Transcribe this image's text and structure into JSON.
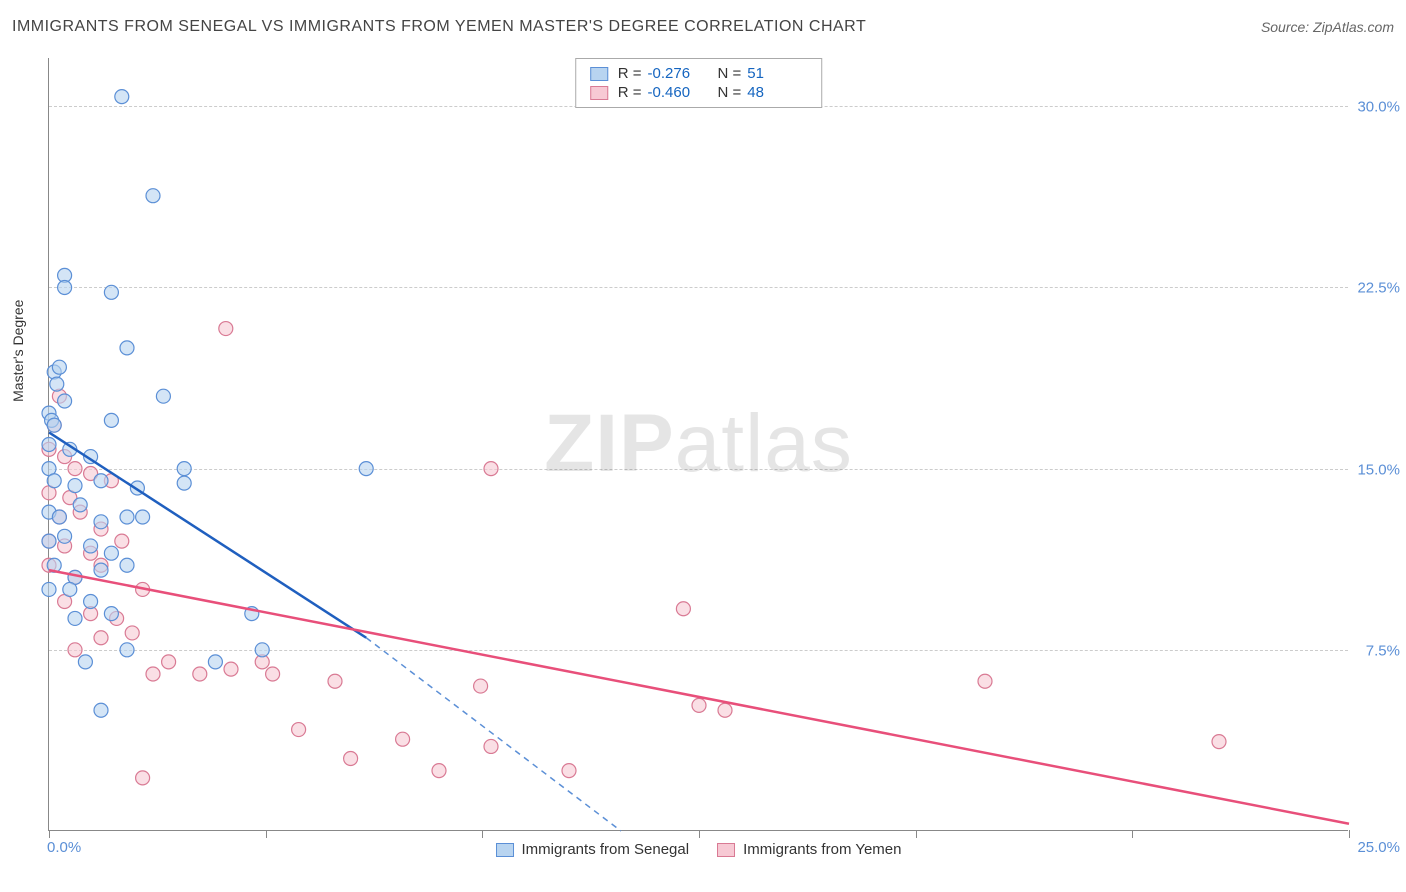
{
  "header": {
    "title": "IMMIGRANTS FROM SENEGAL VS IMMIGRANTS FROM YEMEN MASTER'S DEGREE CORRELATION CHART",
    "source": "Source: ZipAtlas.com"
  },
  "watermark": {
    "zip": "ZIP",
    "atlas": "atlas"
  },
  "chart": {
    "type": "scatter",
    "y_axis_label": "Master's Degree",
    "xlim": [
      0,
      25
    ],
    "ylim": [
      0,
      32
    ],
    "x_origin_label": "0.0%",
    "x_end_label": "25.0%",
    "y_ticks": [
      {
        "v": 7.5,
        "label": "7.5%"
      },
      {
        "v": 15.0,
        "label": "15.0%"
      },
      {
        "v": 22.5,
        "label": "22.5%"
      },
      {
        "v": 30.0,
        "label": "30.0%"
      }
    ],
    "x_tick_positions": [
      0,
      4.17,
      8.33,
      12.5,
      16.67,
      20.83,
      25
    ],
    "colors": {
      "series_a_fill": "#b8d4f0",
      "series_a_stroke": "#5b8fd6",
      "series_a_line": "#1f5fbf",
      "series_b_fill": "#f7c9d4",
      "series_b_stroke": "#d97a94",
      "series_b_line": "#e84f7a",
      "grid": "#cccccc",
      "axis": "#888888",
      "text": "#333333",
      "tick_label": "#5b8fd6"
    },
    "marker_radius": 7,
    "marker_opacity": 0.6,
    "series_a": {
      "name": "Immigrants from Senegal",
      "R": "-0.276",
      "N": "51",
      "trend": {
        "x1": 0,
        "y1": 16.5,
        "x2": 6.1,
        "y2": 8.0,
        "x2_ext": 11.0,
        "y2_ext": 0.0
      },
      "points": [
        [
          1.4,
          30.4
        ],
        [
          2.0,
          26.3
        ],
        [
          0.3,
          23.0
        ],
        [
          0.3,
          22.5
        ],
        [
          1.2,
          22.3
        ],
        [
          0.1,
          19.0
        ],
        [
          0.15,
          18.5
        ],
        [
          0.2,
          19.2
        ],
        [
          1.5,
          20.0
        ],
        [
          0.0,
          17.3
        ],
        [
          0.05,
          17.0
        ],
        [
          0.1,
          16.8
        ],
        [
          0.3,
          17.8
        ],
        [
          2.2,
          18.0
        ],
        [
          0.0,
          16.0
        ],
        [
          0.4,
          15.8
        ],
        [
          0.8,
          15.5
        ],
        [
          1.2,
          17.0
        ],
        [
          2.6,
          15.0
        ],
        [
          0.0,
          15.0
        ],
        [
          0.1,
          14.5
        ],
        [
          0.5,
          14.3
        ],
        [
          1.0,
          14.5
        ],
        [
          1.7,
          14.2
        ],
        [
          2.6,
          14.4
        ],
        [
          0.0,
          13.2
        ],
        [
          0.2,
          13.0
        ],
        [
          0.6,
          13.5
        ],
        [
          1.0,
          12.8
        ],
        [
          1.5,
          13.0
        ],
        [
          0.0,
          12.0
        ],
        [
          0.3,
          12.2
        ],
        [
          0.8,
          11.8
        ],
        [
          1.2,
          11.5
        ],
        [
          1.8,
          13.0
        ],
        [
          0.1,
          11.0
        ],
        [
          0.5,
          10.5
        ],
        [
          1.0,
          10.8
        ],
        [
          0.0,
          10.0
        ],
        [
          0.4,
          10.0
        ],
        [
          0.8,
          9.5
        ],
        [
          1.5,
          11.0
        ],
        [
          0.5,
          8.8
        ],
        [
          1.2,
          9.0
        ],
        [
          3.9,
          9.0
        ],
        [
          3.2,
          7.0
        ],
        [
          4.1,
          7.5
        ],
        [
          1.0,
          5.0
        ],
        [
          6.1,
          15.0
        ],
        [
          1.5,
          7.5
        ],
        [
          0.7,
          7.0
        ]
      ]
    },
    "series_b": {
      "name": "Immigrants from Yemen",
      "R": "-0.460",
      "N": "48",
      "trend": {
        "x1": 0,
        "y1": 10.8,
        "x2": 25.0,
        "y2": 0.3
      },
      "points": [
        [
          3.4,
          20.8
        ],
        [
          0.2,
          18.0
        ],
        [
          0.1,
          16.8
        ],
        [
          0.0,
          15.8
        ],
        [
          0.3,
          15.5
        ],
        [
          0.5,
          15.0
        ],
        [
          0.8,
          14.8
        ],
        [
          1.2,
          14.5
        ],
        [
          0.0,
          14.0
        ],
        [
          0.4,
          13.8
        ],
        [
          0.2,
          13.0
        ],
        [
          0.6,
          13.2
        ],
        [
          1.0,
          12.5
        ],
        [
          0.0,
          12.0
        ],
        [
          0.3,
          11.8
        ],
        [
          0.8,
          11.5
        ],
        [
          1.4,
          12.0
        ],
        [
          0.0,
          11.0
        ],
        [
          0.5,
          10.5
        ],
        [
          1.0,
          11.0
        ],
        [
          8.5,
          15.0
        ],
        [
          1.8,
          10.0
        ],
        [
          0.3,
          9.5
        ],
        [
          0.8,
          9.0
        ],
        [
          1.3,
          8.8
        ],
        [
          1.0,
          8.0
        ],
        [
          1.6,
          8.2
        ],
        [
          2.3,
          7.0
        ],
        [
          0.5,
          7.5
        ],
        [
          2.0,
          6.5
        ],
        [
          2.9,
          6.5
        ],
        [
          3.5,
          6.7
        ],
        [
          4.3,
          6.5
        ],
        [
          4.1,
          7.0
        ],
        [
          5.5,
          6.2
        ],
        [
          4.8,
          4.2
        ],
        [
          5.8,
          3.0
        ],
        [
          6.8,
          3.8
        ],
        [
          7.5,
          2.5
        ],
        [
          8.3,
          6.0
        ],
        [
          8.5,
          3.5
        ],
        [
          10.0,
          2.5
        ],
        [
          12.2,
          9.2
        ],
        [
          12.5,
          5.2
        ],
        [
          13.0,
          5.0
        ],
        [
          18.0,
          6.2
        ],
        [
          22.5,
          3.7
        ],
        [
          1.8,
          2.2
        ]
      ]
    }
  },
  "legend_bottom": {
    "a": "Immigrants from Senegal",
    "b": "Immigrants from Yemen"
  }
}
